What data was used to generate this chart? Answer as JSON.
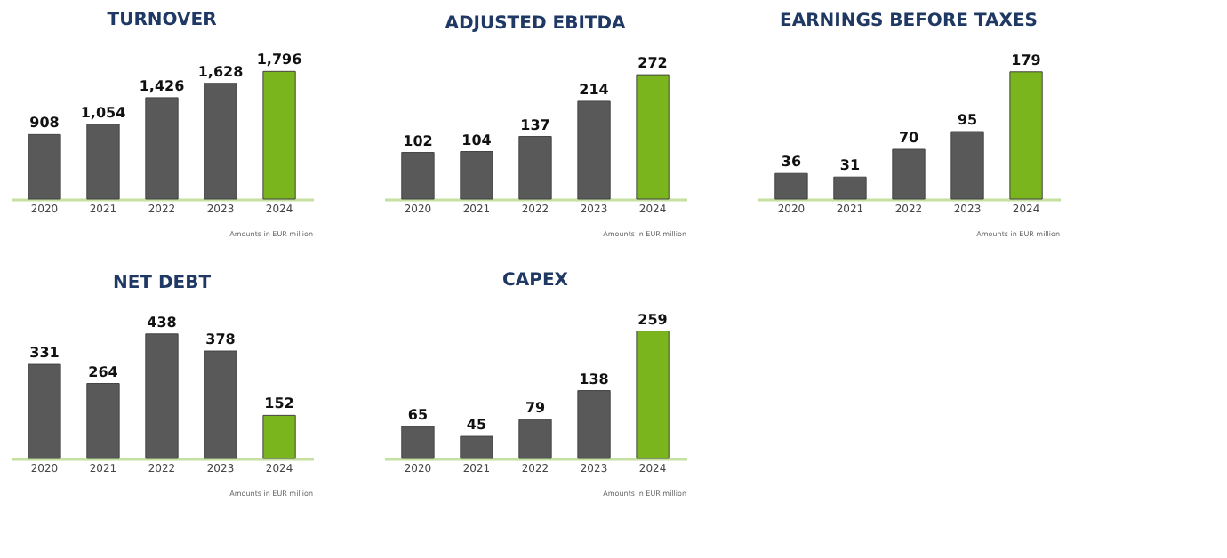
{
  "chart_data": [
    {
      "type": "bar",
      "title": "TURNOVER",
      "categories": [
        "2020",
        "2021",
        "2022",
        "2023",
        "2024"
      ],
      "values": [
        908,
        1054,
        1426,
        1628,
        1796
      ],
      "value_labels": [
        "908",
        "1,054",
        "1,426",
        "1,628",
        "1,796"
      ],
      "colors": [
        "#595959",
        "#595959",
        "#595959",
        "#595959",
        "#7ab51d"
      ],
      "tick_labels": "x",
      "annotations": [
        "Amounts in EUR million"
      ]
    },
    {
      "type": "bar",
      "title": "ADJUSTED EBITDA",
      "categories": [
        "2020",
        "2021",
        "2022",
        "2023",
        "2024"
      ],
      "values": [
        102,
        104,
        137,
        214,
        272
      ],
      "colors": [
        "#595959",
        "#595959",
        "#595959",
        "#595959",
        "#7ab51d"
      ],
      "data_labels": true,
      "tick_labels": "x",
      "annotations": [
        "Amounts in EUR million"
      ]
    },
    {
      "type": "bar",
      "title": "EARNINGS BEFORE TAXES",
      "categories": [
        "2020",
        "2021",
        "2022",
        "2023",
        "2024"
      ],
      "values": [
        36,
        31,
        70,
        95,
        179
      ],
      "colors": [
        "#595959",
        "#595959",
        "#595959",
        "#595959",
        "#7ab51d"
      ],
      "data_labels": true,
      "tick_labels": "x",
      "annotations": [
        "Amounts in EUR million"
      ]
    },
    {
      "type": "bar",
      "title": "NET DEBT",
      "categories": [
        "2020",
        "2021",
        "2022",
        "2023",
        "2024"
      ],
      "values": [
        331,
        264,
        438,
        378,
        152
      ],
      "colors": [
        "#595959",
        "#595959",
        "#595959",
        "#595959",
        "#7ab51d"
      ],
      "data_labels": true,
      "tick_labels": "x",
      "annotations": [
        "Amounts in EUR million"
      ]
    },
    {
      "type": "bar",
      "title": "CAPEX",
      "categories": [
        "2020",
        "2021",
        "2022",
        "2023",
        "2024"
      ],
      "values": [
        65,
        45,
        79,
        138,
        259
      ],
      "colors": [
        "#595959",
        "#595959",
        "#595959",
        "#595959",
        "#7ab51d"
      ],
      "data_labels": true,
      "tick_labels": "x",
      "annotations": [
        "Amounts in EUR million"
      ]
    }
  ]
}
